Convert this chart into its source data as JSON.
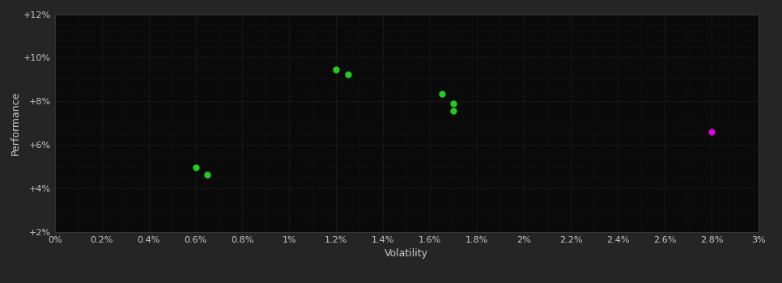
{
  "background_color": "#252525",
  "plot_bg_color": "#0a0a0a",
  "grid_color": "#404040",
  "text_color": "#c8c8c8",
  "xlabel": "Volatility",
  "ylabel": "Performance",
  "xlim": [
    0,
    0.03
  ],
  "ylim": [
    0.02,
    0.12
  ],
  "green_points": [
    [
      0.006,
      0.0495
    ],
    [
      0.0065,
      0.0465
    ],
    [
      0.012,
      0.0945
    ],
    [
      0.0125,
      0.0925
    ],
    [
      0.0165,
      0.0835
    ],
    [
      0.017,
      0.079
    ],
    [
      0.017,
      0.0755
    ]
  ],
  "magenta_points": [
    [
      0.028,
      0.066
    ]
  ],
  "point_size": 25,
  "green_color": "#22cc22",
  "magenta_color": "#dd00dd",
  "xlabel_fontsize": 9,
  "ylabel_fontsize": 9,
  "tick_fontsize": 8
}
